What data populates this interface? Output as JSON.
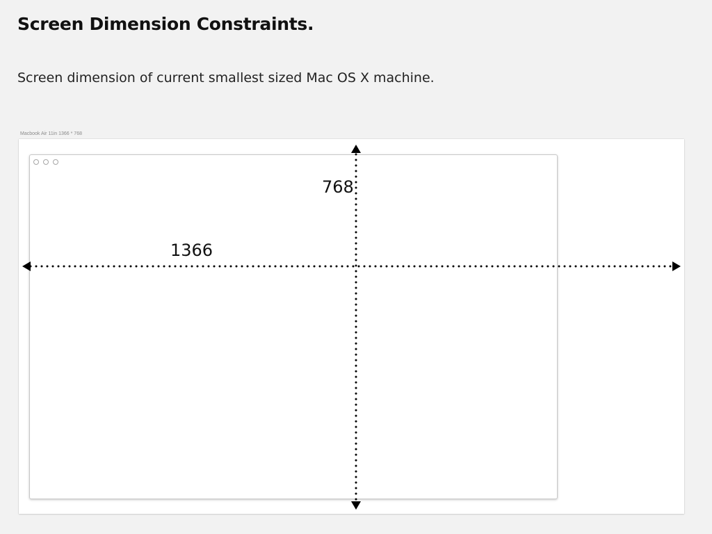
{
  "header": {
    "title": "Screen Dimension Constraints.",
    "subtitle": "Screen dimension of current smallest sized Mac OS X machine."
  },
  "artboard": {
    "label": "Macbook Air 11in 1366 * 768"
  },
  "dimensions": {
    "width_label": "1366",
    "height_label": "768"
  },
  "colors": {
    "page_background": "#f2f2f2",
    "artboard_background": "#ffffff",
    "dimension_line": "#000000"
  }
}
